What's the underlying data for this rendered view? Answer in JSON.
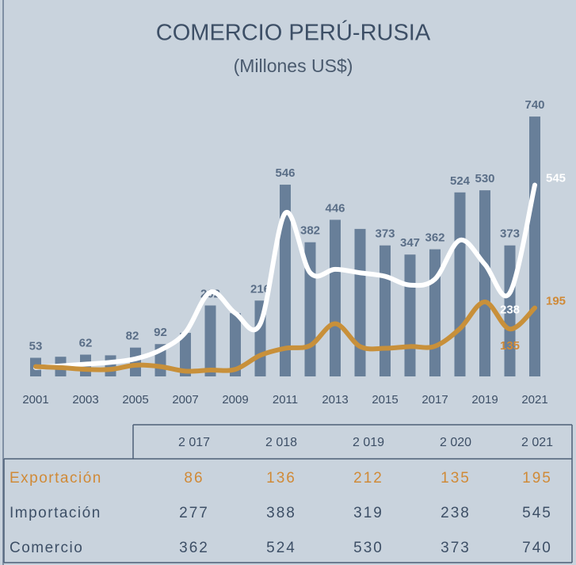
{
  "chart_data": {
    "type": "bar_line",
    "title": "COMERCIO PERÚ-RUSIA",
    "subtitle": "(Millones US$)",
    "categories": [
      "2001",
      null,
      "2003",
      null,
      "2005",
      null,
      "2007",
      null,
      "2009",
      null,
      "2011",
      null,
      "2013",
      null,
      "2015",
      null,
      "2017",
      null,
      "2019",
      null,
      "2021"
    ],
    "ylim": [
      0,
      800
    ],
    "series": [
      {
        "name": "Comercio",
        "kind": "bar",
        "color": "#687f99",
        "values": [
          53,
          56,
          62,
          60,
          82,
          92,
          124,
          202,
          180,
          216,
          546,
          382,
          446,
          420,
          373,
          347,
          362,
          524,
          530,
          373,
          740
        ],
        "value_labels": [
          "53",
          null,
          "62",
          null,
          "82",
          "92",
          null,
          "202",
          null,
          "216",
          "546",
          "382",
          "446",
          null,
          "373",
          "347",
          "362",
          "524",
          "530",
          "373",
          "740"
        ]
      },
      {
        "name": "Importación",
        "kind": "line",
        "color": "#ffffff",
        "values": [
          25,
          30,
          35,
          40,
          50,
          75,
          125,
          240,
          180,
          150,
          465,
          295,
          305,
          295,
          285,
          260,
          277,
          388,
          319,
          238,
          545
        ],
        "value_labels": [
          null,
          null,
          null,
          null,
          null,
          null,
          null,
          null,
          null,
          null,
          null,
          null,
          null,
          null,
          null,
          null,
          null,
          null,
          null,
          "238",
          "545"
        ]
      },
      {
        "name": "Exportación",
        "kind": "line",
        "color": "#c8903a",
        "values": [
          28,
          25,
          20,
          20,
          32,
          28,
          15,
          18,
          20,
          60,
          80,
          88,
          150,
          85,
          80,
          85,
          86,
          136,
          212,
          135,
          195
        ],
        "value_labels": [
          null,
          null,
          null,
          null,
          null,
          null,
          null,
          null,
          null,
          null,
          null,
          null,
          null,
          null,
          null,
          null,
          null,
          null,
          null,
          "135",
          "195"
        ]
      }
    ],
    "table": {
      "columns": [
        "2 017",
        "2 018",
        "2 019",
        "2 020",
        "2 021"
      ],
      "first_index": 16,
      "rows": [
        2,
        1,
        0
      ]
    }
  }
}
